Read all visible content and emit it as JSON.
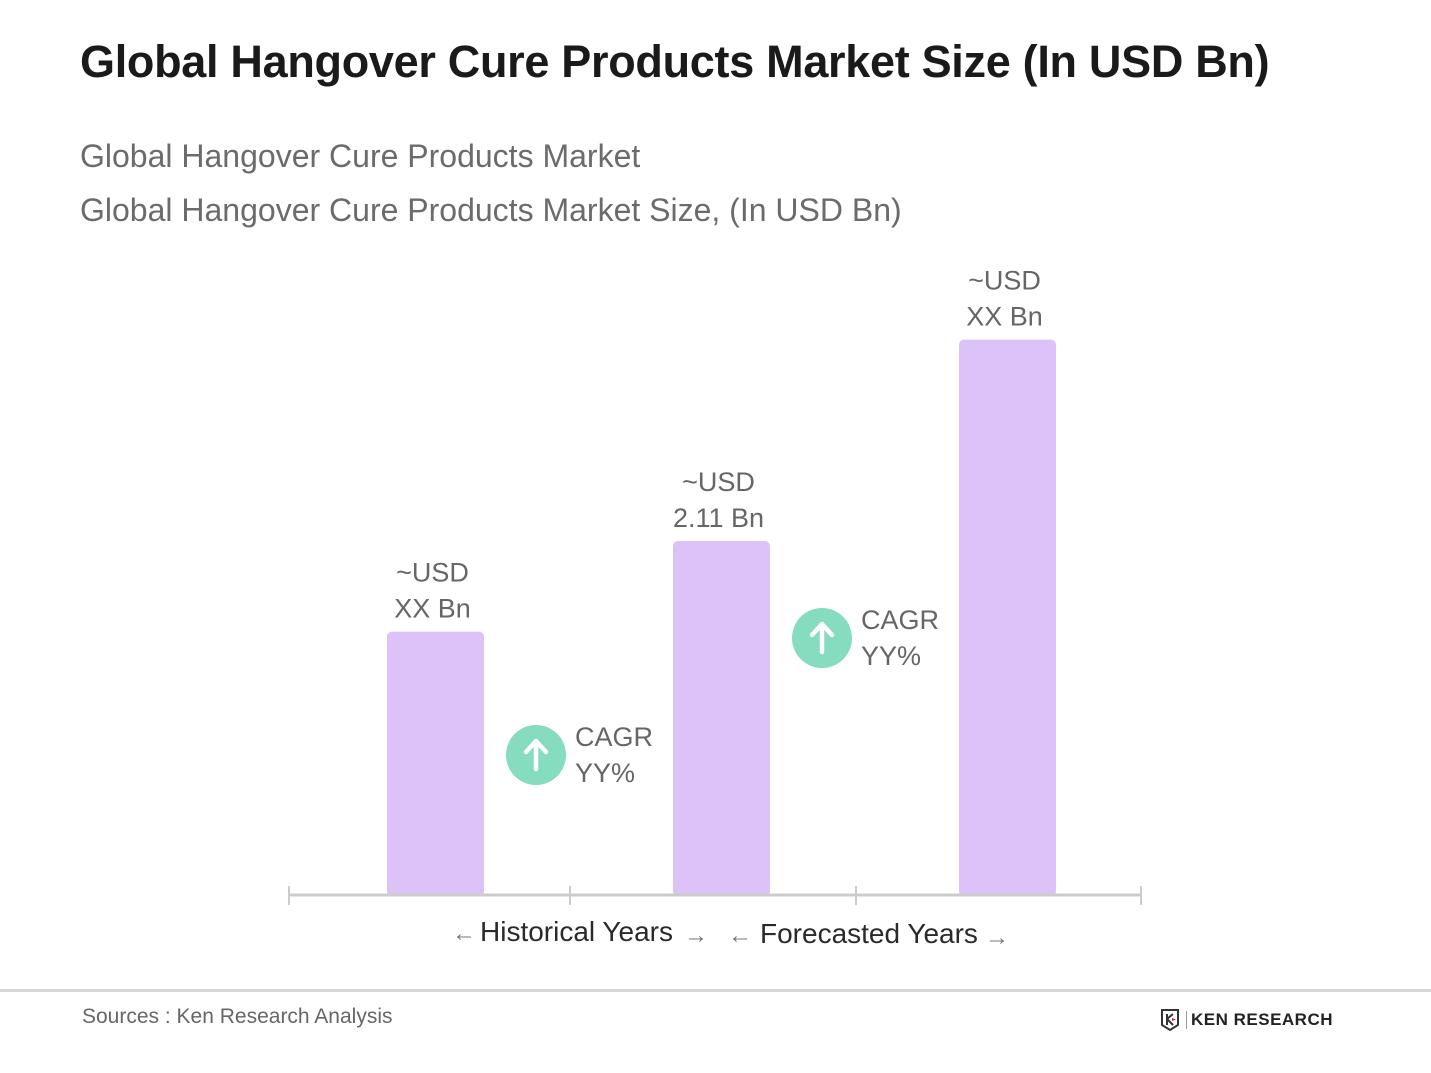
{
  "title": "Global Hangover Cure Products Market Size (In USD Bn)",
  "subtitle1": "Global Hangover Cure Products Market",
  "subtitle2": "Global Hangover Cure Products Market Size, (In USD Bn)",
  "colors": {
    "bar": "#dcc2f6",
    "cagr_circle": "#85dcbf",
    "axis": "#cccccc"
  },
  "chart_data": {
    "type": "bar",
    "categories": [
      "",
      "",
      ""
    ],
    "values": [
      1.57,
      2.11,
      3.31
    ],
    "data_labels": [
      {
        "line1": "~USD",
        "line2": "XX Bn"
      },
      {
        "line1": "~USD",
        "line2": "2.11 Bn"
      },
      {
        "line1": "~USD",
        "line2": "XX Bn"
      }
    ],
    "annotations": [
      {
        "icon": "arrow-up-circle-icon",
        "line1": "CAGR",
        "line2": "YY%"
      },
      {
        "icon": "arrow-up-circle-icon",
        "line1": "CAGR",
        "line2": "YY%"
      }
    ],
    "period_labels": {
      "historical": "Historical Years",
      "forecasted": "Forecasted Years"
    },
    "ylim": [
      0,
      3.6
    ],
    "grid": false,
    "legend": "none"
  },
  "footer": {
    "source": "Sources : Ken Research Analysis",
    "logo_text": "KEN RESEARCH"
  }
}
